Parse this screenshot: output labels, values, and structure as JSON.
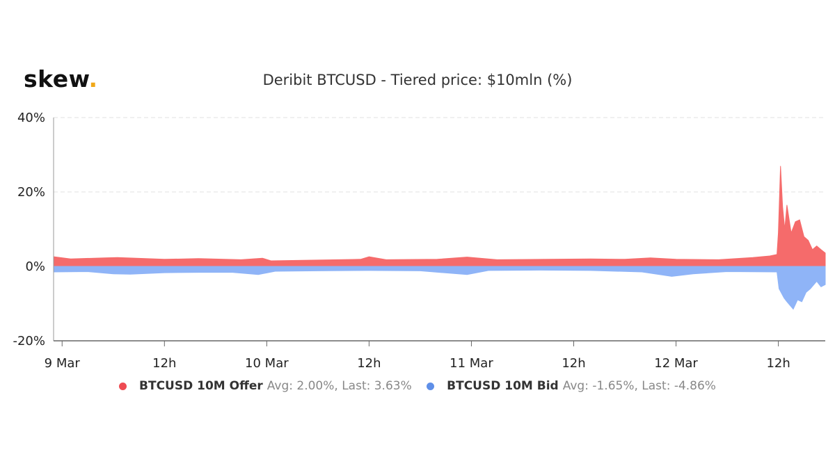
{
  "brand": {
    "name": "skew",
    "dot": "."
  },
  "chart_data": {
    "type": "area",
    "title": "Deribit BTCUSD - Tiered price: $10mln (%)",
    "xlabel": "",
    "ylabel": "",
    "ylim": [
      -20,
      40
    ],
    "yticks": [
      -20,
      0,
      20,
      40
    ],
    "ytick_labels": [
      "-20%",
      "0%",
      "20%",
      "40%"
    ],
    "xlim": [
      "2020-03-08T23:00",
      "2020-03-12T17:30"
    ],
    "xticks": [
      "2020-03-09T00:00",
      "2020-03-09T12:00",
      "2020-03-10T00:00",
      "2020-03-10T12:00",
      "2020-03-11T00:00",
      "2020-03-11T12:00",
      "2020-03-12T00:00",
      "2020-03-12T12:00"
    ],
    "xtick_labels": [
      "9 Mar",
      "12h",
      "10 Mar",
      "12h",
      "11 Mar",
      "12h",
      "12 Mar",
      "12h"
    ],
    "grid": "horizontal dashed",
    "legend_position": "bottom",
    "series": [
      {
        "name": "BTCUSD 10M Offer",
        "stats": "Avg: 2.00%, Last: 3.63%",
        "color": "#f56b6b",
        "legend_color": "#ee4b52",
        "points": [
          [
            "2020-03-08T23:00",
            2.6
          ],
          [
            "2020-03-09T01:00",
            2.0
          ],
          [
            "2020-03-09T05:00",
            2.3
          ],
          [
            "2020-03-09T06:30",
            2.4
          ],
          [
            "2020-03-09T12:00",
            1.9
          ],
          [
            "2020-03-09T16:00",
            2.1
          ],
          [
            "2020-03-09T21:00",
            1.8
          ],
          [
            "2020-03-09T23:30",
            2.2
          ],
          [
            "2020-03-10T00:30",
            1.5
          ],
          [
            "2020-03-10T06:00",
            1.7
          ],
          [
            "2020-03-10T11:00",
            1.9
          ],
          [
            "2020-03-10T12:00",
            2.6
          ],
          [
            "2020-03-10T14:00",
            1.8
          ],
          [
            "2020-03-10T20:00",
            1.9
          ],
          [
            "2020-03-10T23:30",
            2.5
          ],
          [
            "2020-03-11T03:00",
            1.8
          ],
          [
            "2020-03-11T09:00",
            1.9
          ],
          [
            "2020-03-11T14:00",
            2.0
          ],
          [
            "2020-03-11T18:00",
            1.9
          ],
          [
            "2020-03-11T21:00",
            2.3
          ],
          [
            "2020-03-12T00:00",
            1.9
          ],
          [
            "2020-03-12T05:00",
            1.8
          ],
          [
            "2020-03-12T09:00",
            2.4
          ],
          [
            "2020-03-12T11:00",
            2.8
          ],
          [
            "2020-03-12T11:50",
            3.2
          ],
          [
            "2020-03-12T12:00",
            9.0
          ],
          [
            "2020-03-12T12:15",
            27.0
          ],
          [
            "2020-03-12T12:30",
            16.0
          ],
          [
            "2020-03-12T12:45",
            10.0
          ],
          [
            "2020-03-12T13:00",
            16.5
          ],
          [
            "2020-03-12T13:30",
            9.0
          ],
          [
            "2020-03-12T14:00",
            12.0
          ],
          [
            "2020-03-12T14:30",
            12.5
          ],
          [
            "2020-03-12T15:00",
            8.0
          ],
          [
            "2020-03-12T15:30",
            7.0
          ],
          [
            "2020-03-12T16:00",
            4.5
          ],
          [
            "2020-03-12T16:30",
            5.5
          ],
          [
            "2020-03-12T17:00",
            4.5
          ],
          [
            "2020-03-12T17:30",
            3.6
          ]
        ]
      },
      {
        "name": "BTCUSD 10M Bid",
        "stats": "Avg: -1.65%, Last: -4.86%",
        "color": "#8fb4f7",
        "legend_color": "#5f8fe8",
        "points": [
          [
            "2020-03-08T23:00",
            -1.5
          ],
          [
            "2020-03-09T03:00",
            -1.4
          ],
          [
            "2020-03-09T06:00",
            -2.0
          ],
          [
            "2020-03-09T08:00",
            -2.1
          ],
          [
            "2020-03-09T12:00",
            -1.7
          ],
          [
            "2020-03-09T16:00",
            -1.6
          ],
          [
            "2020-03-09T20:00",
            -1.6
          ],
          [
            "2020-03-09T23:00",
            -2.2
          ],
          [
            "2020-03-10T01:00",
            -1.3
          ],
          [
            "2020-03-10T06:00",
            -1.2
          ],
          [
            "2020-03-10T12:00",
            -1.1
          ],
          [
            "2020-03-10T18:00",
            -1.2
          ],
          [
            "2020-03-10T23:30",
            -2.2
          ],
          [
            "2020-03-11T02:00",
            -1.1
          ],
          [
            "2020-03-11T08:00",
            -1.0
          ],
          [
            "2020-03-11T14:00",
            -1.1
          ],
          [
            "2020-03-11T20:00",
            -1.5
          ],
          [
            "2020-03-11T23:30",
            -2.7
          ],
          [
            "2020-03-12T02:00",
            -2.0
          ],
          [
            "2020-03-12T06:00",
            -1.4
          ],
          [
            "2020-03-12T11:50",
            -1.5
          ],
          [
            "2020-03-12T12:05",
            -6.0
          ],
          [
            "2020-03-12T12:40",
            -8.5
          ],
          [
            "2020-03-12T13:00",
            -9.5
          ],
          [
            "2020-03-12T13:45",
            -11.5
          ],
          [
            "2020-03-12T14:15",
            -9.0
          ],
          [
            "2020-03-12T14:45",
            -9.5
          ],
          [
            "2020-03-12T15:15",
            -7.0
          ],
          [
            "2020-03-12T15:45",
            -6.0
          ],
          [
            "2020-03-12T16:30",
            -4.0
          ],
          [
            "2020-03-12T17:00",
            -5.5
          ],
          [
            "2020-03-12T17:30",
            -4.9
          ]
        ]
      }
    ]
  }
}
